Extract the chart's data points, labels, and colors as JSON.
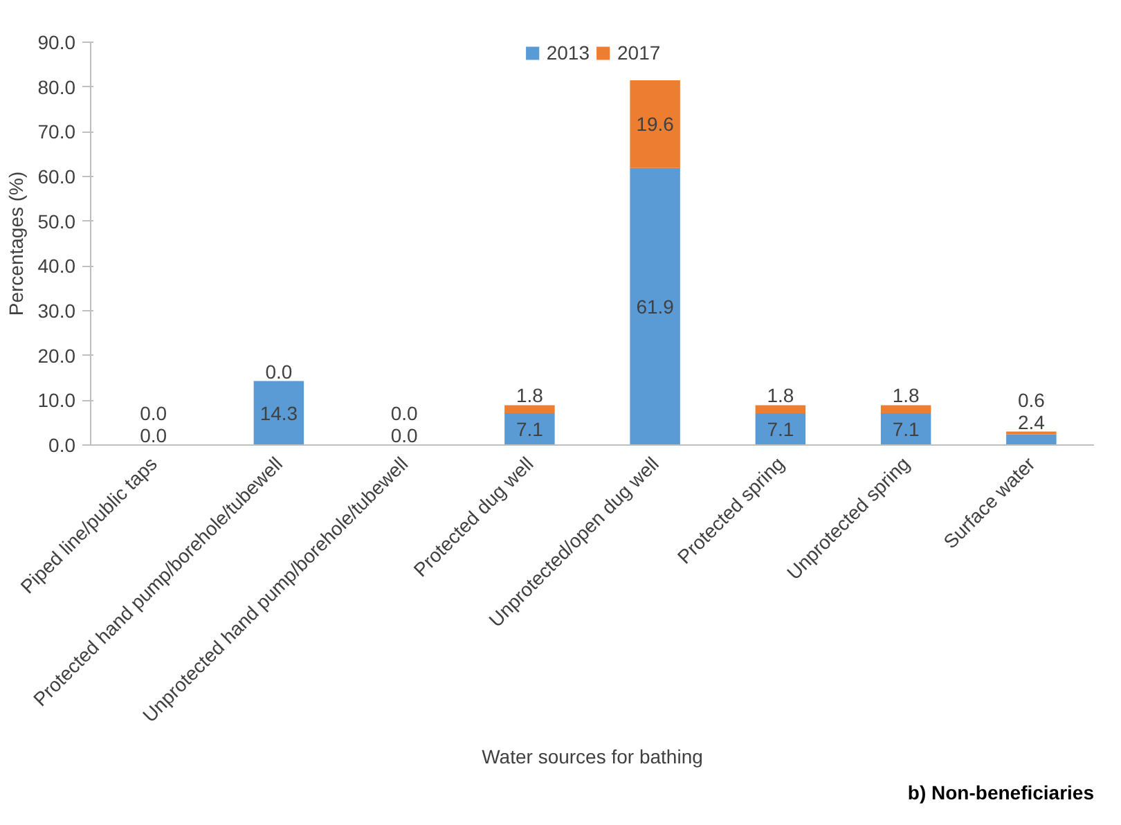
{
  "chart_data": {
    "type": "bar",
    "stacked": true,
    "categories": [
      "Piped line/public taps",
      "Protected hand pump/borehole/tubewell",
      "Unprotected hand pump/borehole/tubewell",
      "Protected dug well",
      "Unprotected/open dug well",
      "Protected spring",
      "Unprotected spring",
      "Surface water"
    ],
    "series": [
      {
        "name": "2013",
        "color": "#5b9bd5",
        "values": [
          0.0,
          14.3,
          0.0,
          7.1,
          61.9,
          7.1,
          7.1,
          2.4
        ],
        "value_labels": [
          "0.0",
          "14.3",
          "0.0",
          "7.1",
          "61.9",
          "7.1",
          "7.1",
          "2.4"
        ]
      },
      {
        "name": "2017",
        "color": "#ed7d31",
        "values": [
          0.0,
          0.0,
          0.0,
          1.8,
          19.6,
          1.8,
          1.8,
          0.6
        ],
        "value_labels": [
          "0.0",
          "0.0",
          "0.0",
          "1.8",
          "19.6",
          "1.8",
          "1.8",
          "0.6"
        ]
      }
    ],
    "ylim": [
      0,
      90
    ],
    "yticks": [
      {
        "value": 0,
        "label": "0.0"
      },
      {
        "value": 10,
        "label": "10.0"
      },
      {
        "value": 20,
        "label": "20.0"
      },
      {
        "value": 30,
        "label": "30.0"
      },
      {
        "value": 40,
        "label": "40.0"
      },
      {
        "value": 50,
        "label": "50.0"
      },
      {
        "value": 60,
        "label": "60.0"
      },
      {
        "value": 70,
        "label": "70.0"
      },
      {
        "value": 80,
        "label": "80.0"
      },
      {
        "value": 90,
        "label": "90.0"
      }
    ],
    "xlabel": "Water sources for bathing",
    "ylabel": "Percentages (%)",
    "legend": "top",
    "grid": false,
    "annotations": [
      "b) Non-beneficiaries"
    ]
  }
}
